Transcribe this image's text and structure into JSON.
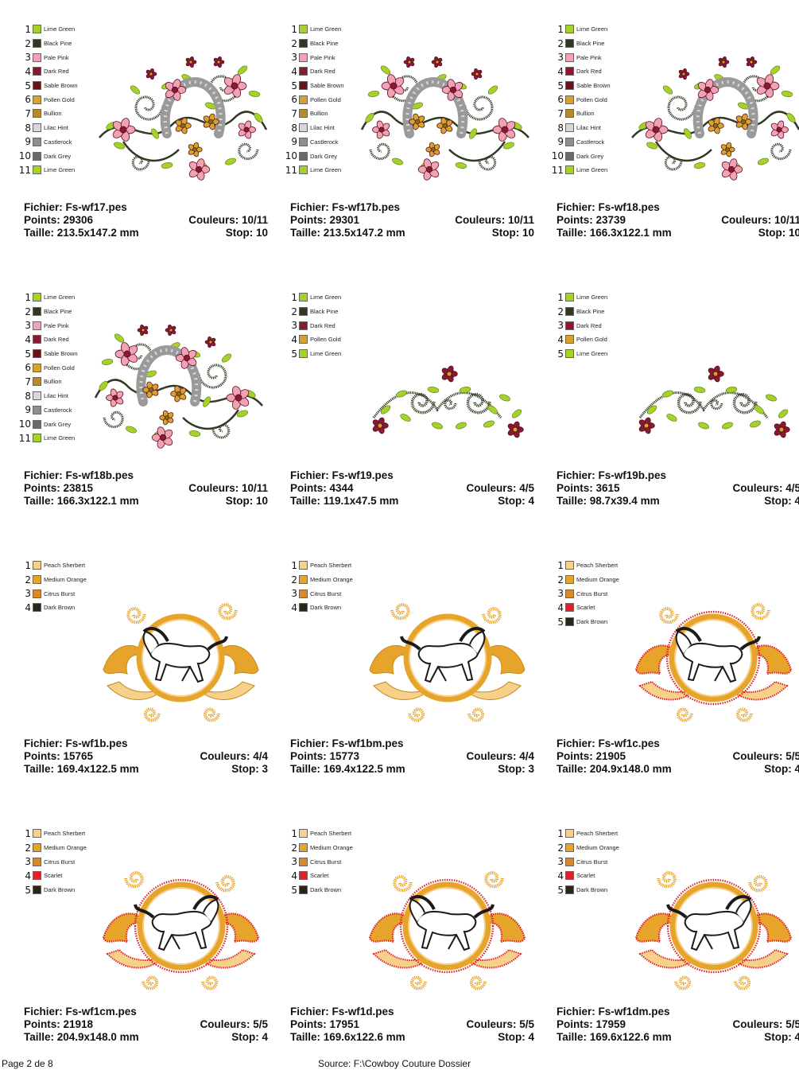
{
  "designs": [
    {
      "file": "Fichier: Fs-wf17.pes",
      "points": "Points: 29306",
      "size": "Taille: 213.5x147.2 mm",
      "colors": "Couleurs: 10/11",
      "stop": "Stop: 10",
      "motif": "floral-horseshoe",
      "flip": false,
      "palette": [
        {
          "n": "1",
          "name": "Lime Green",
          "color": "#a6d12a"
        },
        {
          "n": "2",
          "name": "Black Pine",
          "color": "#2f3a22"
        },
        {
          "n": "3",
          "name": "Pale Pink",
          "color": "#f2a2b4"
        },
        {
          "n": "4",
          "name": "Dark Red",
          "color": "#8a1830"
        },
        {
          "n": "5",
          "name": "Sable Brown",
          "color": "#6b1218"
        },
        {
          "n": "6",
          "name": "Pollen Gold",
          "color": "#d8a32a"
        },
        {
          "n": "7",
          "name": "Bullion",
          "color": "#b98a2a"
        },
        {
          "n": "8",
          "name": "Lilac Hint",
          "color": "#d8d8d8"
        },
        {
          "n": "9",
          "name": "Castlerock",
          "color": "#8e8e8e"
        },
        {
          "n": "10",
          "name": "Dark Grey",
          "color": "#6a6a6a"
        },
        {
          "n": "11",
          "name": "Lime Green",
          "color": "#a6d12a"
        }
      ]
    },
    {
      "file": "Fichier: Fs-wf17b.pes",
      "points": "Points: 29301",
      "size": "Taille: 213.5x147.2 mm",
      "colors": "Couleurs: 10/11",
      "stop": "Stop: 10",
      "motif": "floral-horseshoe",
      "flip": true,
      "palette": [
        {
          "n": "1",
          "name": "Lime Green",
          "color": "#a6d12a"
        },
        {
          "n": "2",
          "name": "Black Pine",
          "color": "#2f3a22"
        },
        {
          "n": "3",
          "name": "Pale Pink",
          "color": "#f2a2b4"
        },
        {
          "n": "4",
          "name": "Dark Red",
          "color": "#8a1830"
        },
        {
          "n": "5",
          "name": "Sable Brown",
          "color": "#6b1218"
        },
        {
          "n": "6",
          "name": "Pollen Gold",
          "color": "#d8a32a"
        },
        {
          "n": "7",
          "name": "Bullion",
          "color": "#b98a2a"
        },
        {
          "n": "8",
          "name": "Lilac Hint",
          "color": "#d8d8d8"
        },
        {
          "n": "9",
          "name": "Castlerock",
          "color": "#8e8e8e"
        },
        {
          "n": "10",
          "name": "Dark Grey",
          "color": "#6a6a6a"
        },
        {
          "n": "11",
          "name": "Lime Green",
          "color": "#a6d12a"
        }
      ]
    },
    {
      "file": "Fichier: Fs-wf18.pes",
      "points": "Points: 23739",
      "size": "Taille: 166.3x122.1 mm",
      "colors": "Couleurs: 10/11",
      "stop": "Stop: 10",
      "motif": "floral-horseshoe",
      "flip": false,
      "palette": [
        {
          "n": "1",
          "name": "Lime Green",
          "color": "#a6d12a"
        },
        {
          "n": "2",
          "name": "Black Pine",
          "color": "#2f3a22"
        },
        {
          "n": "3",
          "name": "Pale Pink",
          "color": "#f2a2b4"
        },
        {
          "n": "4",
          "name": "Dark Red",
          "color": "#8a1830"
        },
        {
          "n": "5",
          "name": "Sable Brown",
          "color": "#6b1218"
        },
        {
          "n": "6",
          "name": "Pollen Gold",
          "color": "#d8a32a"
        },
        {
          "n": "7",
          "name": "Bullion",
          "color": "#b98a2a"
        },
        {
          "n": "8",
          "name": "Lilac Hint",
          "color": "#d8d8d8"
        },
        {
          "n": "9",
          "name": "Castlerock",
          "color": "#8e8e8e"
        },
        {
          "n": "10",
          "name": "Dark Grey",
          "color": "#6a6a6a"
        },
        {
          "n": "11",
          "name": "Lime Green",
          "color": "#a6d12a"
        }
      ]
    },
    {
      "file": "Fichier: Fs-wf18b.pes",
      "points": "Points: 23815",
      "size": "Taille: 166.3x122.1 mm",
      "colors": "Couleurs: 10/11",
      "stop": "Stop: 10",
      "motif": "floral-horseshoe",
      "flip": true,
      "palette": [
        {
          "n": "1",
          "name": "Lime Green",
          "color": "#a6d12a"
        },
        {
          "n": "2",
          "name": "Black Pine",
          "color": "#2f3a22"
        },
        {
          "n": "3",
          "name": "Pale Pink",
          "color": "#f2a2b4"
        },
        {
          "n": "4",
          "name": "Dark Red",
          "color": "#8a1830"
        },
        {
          "n": "5",
          "name": "Sable Brown",
          "color": "#6b1218"
        },
        {
          "n": "6",
          "name": "Pollen Gold",
          "color": "#d8a32a"
        },
        {
          "n": "7",
          "name": "Bullion",
          "color": "#b98a2a"
        },
        {
          "n": "8",
          "name": "Lilac Hint",
          "color": "#d8d8d8"
        },
        {
          "n": "9",
          "name": "Castlerock",
          "color": "#8e8e8e"
        },
        {
          "n": "10",
          "name": "Dark Grey",
          "color": "#6a6a6a"
        },
        {
          "n": "11",
          "name": "Lime Green",
          "color": "#a6d12a"
        }
      ]
    },
    {
      "file": "Fichier: Fs-wf19.pes",
      "points": "Points: 4344",
      "size": "Taille: 119.1x47.5 mm",
      "colors": "Couleurs: 4/5",
      "stop": "Stop: 4",
      "motif": "floral-border",
      "flip": false,
      "palette": [
        {
          "n": "1",
          "name": "Lime Green",
          "color": "#a6d12a"
        },
        {
          "n": "2",
          "name": "Black Pine",
          "color": "#2f3a22"
        },
        {
          "n": "3",
          "name": "Dark Red",
          "color": "#8a1830"
        },
        {
          "n": "4",
          "name": "Pollen Gold",
          "color": "#d8a32a"
        },
        {
          "n": "5",
          "name": "Lime Green",
          "color": "#a6d12a"
        }
      ]
    },
    {
      "file": "Fichier: Fs-wf19b.pes",
      "points": "Points: 3615",
      "size": "Taille: 98.7x39.4 mm",
      "colors": "Couleurs: 4/5",
      "stop": "Stop: 4",
      "motif": "floral-border",
      "flip": false,
      "palette": [
        {
          "n": "1",
          "name": "Lime Green",
          "color": "#a6d12a"
        },
        {
          "n": "2",
          "name": "Black Pine",
          "color": "#2f3a22"
        },
        {
          "n": "3",
          "name": "Dark Red",
          "color": "#8a1830"
        },
        {
          "n": "4",
          "name": "Pollen Gold",
          "color": "#d8a32a"
        },
        {
          "n": "5",
          "name": "Lime Green",
          "color": "#a6d12a"
        }
      ]
    },
    {
      "file": "Fichier: Fs-wf1b.pes",
      "points": "Points: 15765",
      "size": "Taille: 169.4x122.5 mm",
      "colors": "Couleurs: 4/4",
      "stop": "Stop: 3",
      "motif": "horse-scroll",
      "flip": false,
      "edge": "none",
      "palette": [
        {
          "n": "1",
          "name": "Peach Sherbert",
          "color": "#f7d08a"
        },
        {
          "n": "2",
          "name": "Medium Orange",
          "color": "#e6a42a"
        },
        {
          "n": "3",
          "name": "Citrus Burst",
          "color": "#d9882a"
        },
        {
          "n": "4",
          "name": "Dark Brown",
          "color": "#2b2418"
        }
      ]
    },
    {
      "file": "Fichier: Fs-wf1bm.pes",
      "points": "Points: 15773",
      "size": "Taille: 169.4x122.5 mm",
      "colors": "Couleurs: 4/4",
      "stop": "Stop: 3",
      "motif": "horse-scroll",
      "flip": true,
      "edge": "none",
      "palette": [
        {
          "n": "1",
          "name": "Peach Sherbert",
          "color": "#f7d08a"
        },
        {
          "n": "2",
          "name": "Medium Orange",
          "color": "#e6a42a"
        },
        {
          "n": "3",
          "name": "Citrus Burst",
          "color": "#d9882a"
        },
        {
          "n": "4",
          "name": "Dark Brown",
          "color": "#2b2418"
        }
      ]
    },
    {
      "file": "Fichier: Fs-wf1c.pes",
      "points": "Points: 21905",
      "size": "Taille: 204.9x148.0 mm",
      "colors": "Couleurs: 5/5",
      "stop": "Stop: 4",
      "motif": "horse-scroll",
      "flip": false,
      "edge": "scarlet",
      "palette": [
        {
          "n": "1",
          "name": "Peach Sherbert",
          "color": "#f7d08a"
        },
        {
          "n": "2",
          "name": "Medium Orange",
          "color": "#e6a42a"
        },
        {
          "n": "3",
          "name": "Citrus Burst",
          "color": "#d9882a"
        },
        {
          "n": "4",
          "name": "Scarlet",
          "color": "#e0202a"
        },
        {
          "n": "5",
          "name": "Dark Brown",
          "color": "#2b2418"
        }
      ]
    },
    {
      "file": "Fichier: Fs-wf1cm.pes",
      "points": "Points: 21918",
      "size": "Taille: 204.9x148.0 mm",
      "colors": "Couleurs: 5/5",
      "stop": "Stop: 4",
      "motif": "horse-scroll",
      "flip": true,
      "edge": "scarlet",
      "palette": [
        {
          "n": "1",
          "name": "Peach Sherbert",
          "color": "#f7d08a"
        },
        {
          "n": "2",
          "name": "Medium Orange",
          "color": "#e6a42a"
        },
        {
          "n": "3",
          "name": "Citrus Burst",
          "color": "#d9882a"
        },
        {
          "n": "4",
          "name": "Scarlet",
          "color": "#e0202a"
        },
        {
          "n": "5",
          "name": "Dark Brown",
          "color": "#2b2418"
        }
      ]
    },
    {
      "file": "Fichier: Fs-wf1d.pes",
      "points": "Points: 17951",
      "size": "Taille: 169.6x122.6 mm",
      "colors": "Couleurs: 5/5",
      "stop": "Stop: 4",
      "motif": "horse-scroll",
      "flip": false,
      "edge": "scarlet",
      "palette": [
        {
          "n": "1",
          "name": "Peach Sherbert",
          "color": "#f7d08a"
        },
        {
          "n": "2",
          "name": "Medium Orange",
          "color": "#e6a42a"
        },
        {
          "n": "3",
          "name": "Citrus Burst",
          "color": "#d9882a"
        },
        {
          "n": "4",
          "name": "Scarlet",
          "color": "#e0202a"
        },
        {
          "n": "5",
          "name": "Dark Brown",
          "color": "#2b2418"
        }
      ]
    },
    {
      "file": "Fichier: Fs-wf1dm.pes",
      "points": "Points: 17959",
      "size": "Taille: 169.6x122.6 mm",
      "colors": "Couleurs: 5/5",
      "stop": "Stop: 4",
      "motif": "horse-scroll",
      "flip": true,
      "edge": "scarlet",
      "palette": [
        {
          "n": "1",
          "name": "Peach Sherbert",
          "color": "#f7d08a"
        },
        {
          "n": "2",
          "name": "Medium Orange",
          "color": "#e6a42a"
        },
        {
          "n": "3",
          "name": "Citrus Burst",
          "color": "#d9882a"
        },
        {
          "n": "4",
          "name": "Scarlet",
          "color": "#e0202a"
        },
        {
          "n": "5",
          "name": "Dark Brown",
          "color": "#2b2418"
        }
      ]
    }
  ],
  "footer": {
    "page": "Page 2 de 8",
    "source": "Source: F:\\Cowboy Couture Dossier"
  }
}
